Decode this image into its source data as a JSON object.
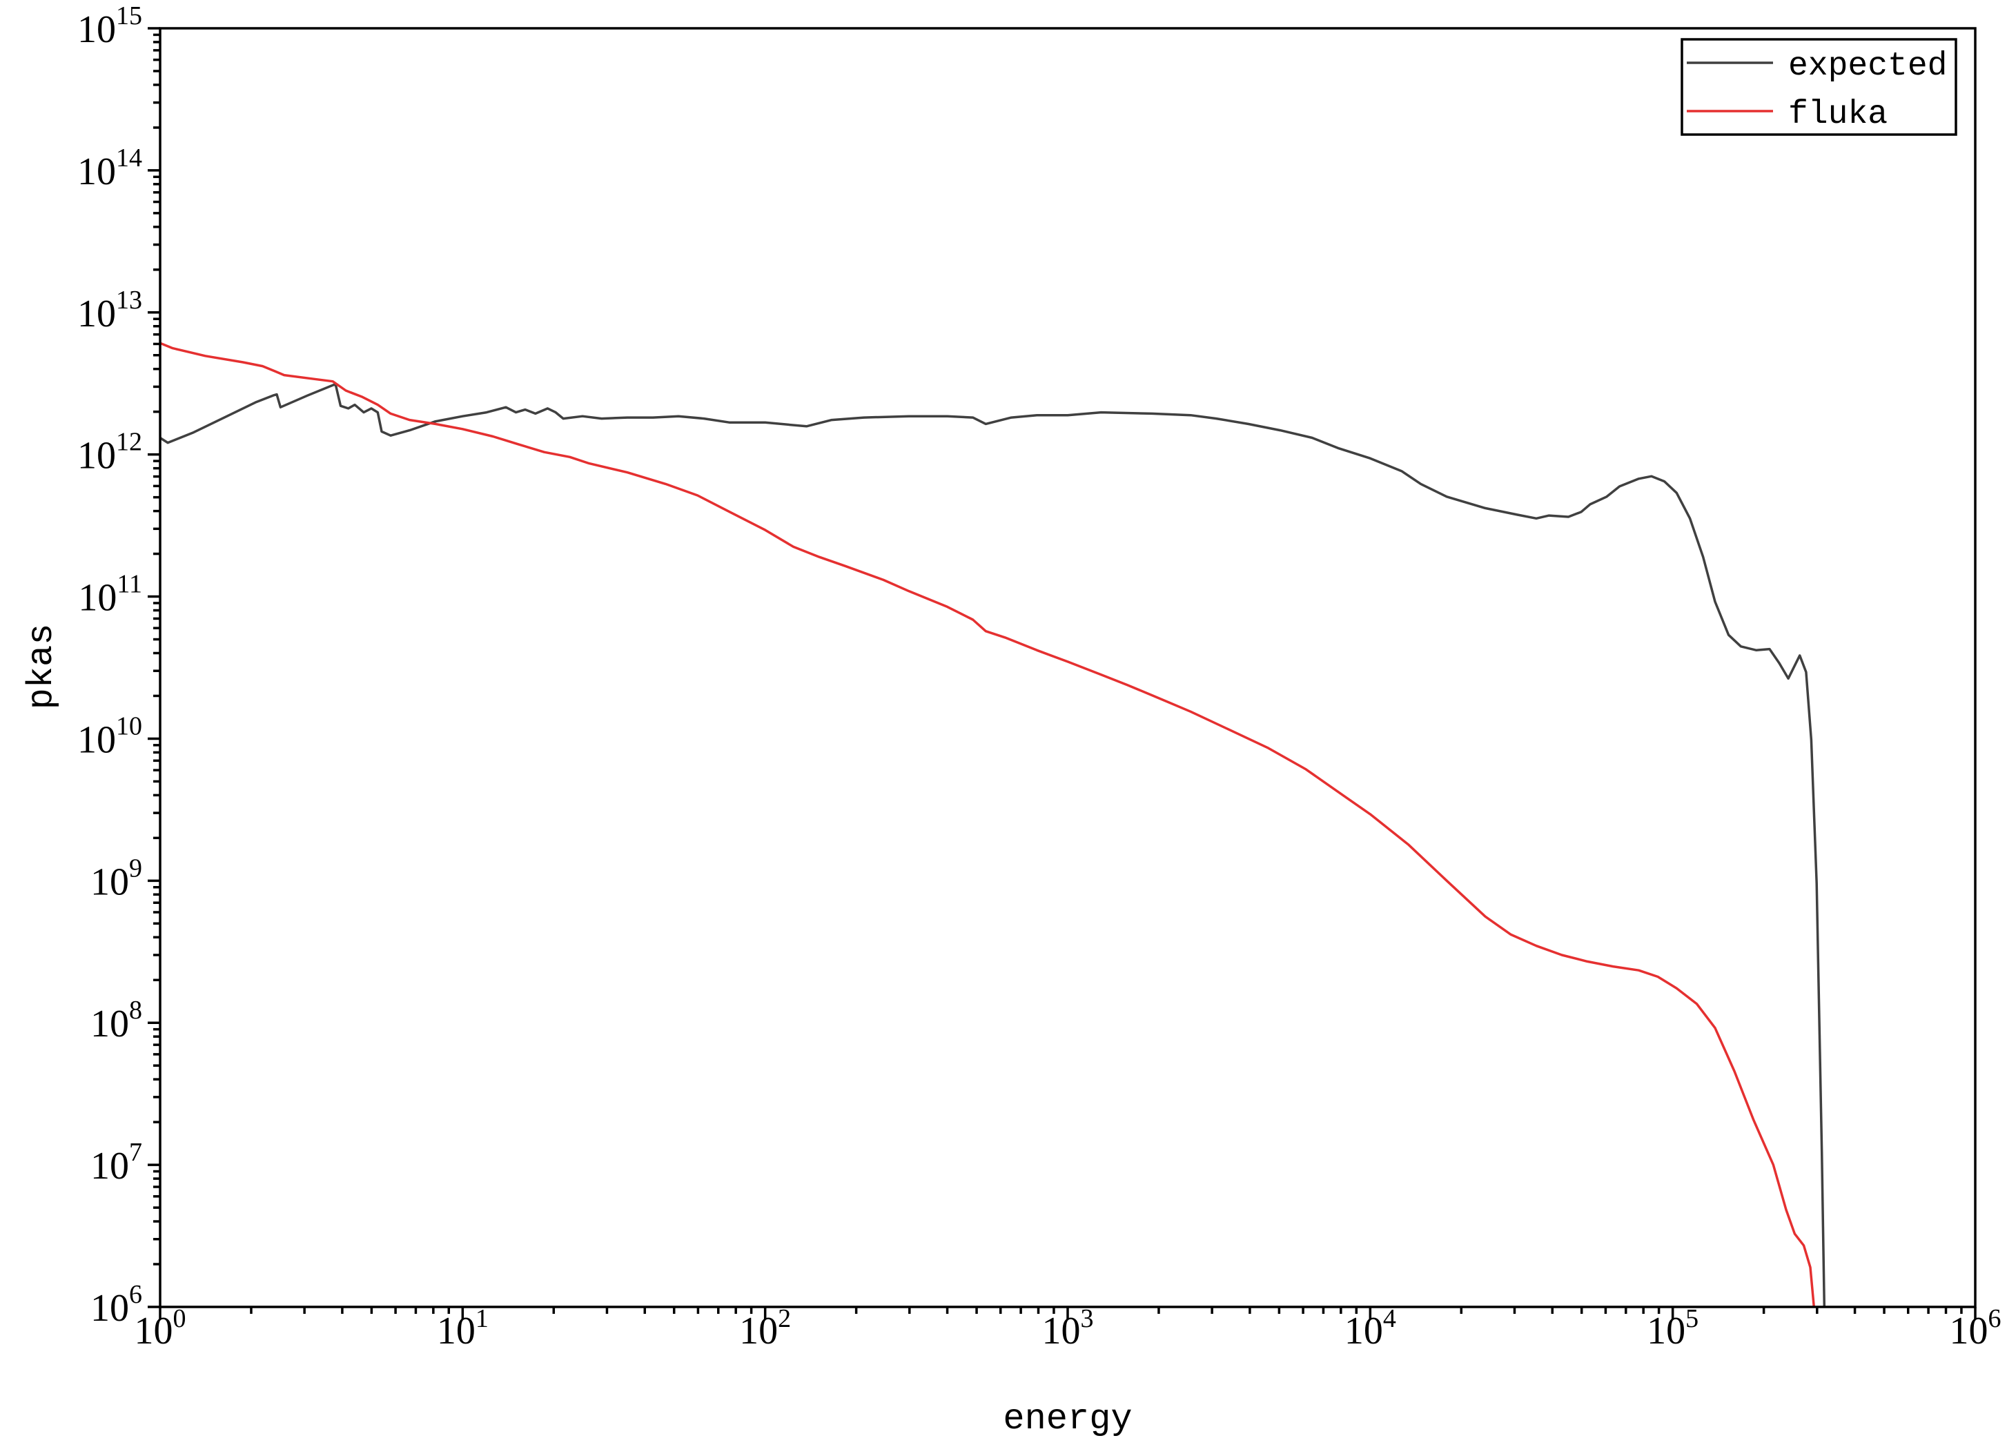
{
  "chart_data": {
    "type": "line",
    "xlabel": "energy",
    "ylabel": "pkas",
    "xscale": "log",
    "yscale": "log",
    "xlim": [
      1,
      1000000
    ],
    "ylim": [
      1000000,
      1000000000000000.0
    ],
    "grid": false,
    "legend_position": "top-right",
    "x_ticks": [
      1,
      10,
      100,
      1000,
      10000,
      100000,
      1000000
    ],
    "x_tick_labels": [
      {
        "base": "10",
        "exp": "0"
      },
      {
        "base": "10",
        "exp": "1"
      },
      {
        "base": "10",
        "exp": "2"
      },
      {
        "base": "10",
        "exp": "3"
      },
      {
        "base": "10",
        "exp": "4"
      },
      {
        "base": "10",
        "exp": "5"
      },
      {
        "base": "10",
        "exp": "6"
      }
    ],
    "y_ticks": [
      1000000.0,
      10000000.0,
      100000000.0,
      1000000000.0,
      10000000000.0,
      100000000000.0,
      1000000000000.0,
      10000000000000.0,
      100000000000000.0,
      1000000000000000.0
    ],
    "y_tick_labels": [
      {
        "base": "10",
        "exp": "6"
      },
      {
        "base": "10",
        "exp": "7"
      },
      {
        "base": "10",
        "exp": "8"
      },
      {
        "base": "10",
        "exp": "9"
      },
      {
        "base": "10",
        "exp": "10"
      },
      {
        "base": "10",
        "exp": "11"
      },
      {
        "base": "10",
        "exp": "12"
      },
      {
        "base": "10",
        "exp": "13"
      },
      {
        "base": "10",
        "exp": "14"
      },
      {
        "base": "10",
        "exp": "15"
      }
    ],
    "series": [
      {
        "name": "expected",
        "color": "#404040",
        "x": [
          1,
          1.06,
          1.28,
          1.63,
          2.08,
          2.36,
          2.43,
          2.5,
          3.07,
          3.8,
          3.95,
          4.19,
          4.4,
          4.71,
          4.99,
          5.24,
          5.4,
          5.78,
          6.68,
          8.13,
          10,
          12,
          13.9,
          15,
          16.1,
          17.4,
          19.1,
          20.3,
          21.5,
          24.9,
          28.8,
          35,
          42.6,
          51.7,
          62.8,
          76.4,
          100,
          137,
          166,
          212,
          299,
          400,
          486,
          536,
          651,
          791,
          1000,
          1290,
          1900,
          2550,
          3100,
          3950,
          5040,
          6430,
          7820,
          10000,
          12700,
          14700,
          17900,
          24000,
          30600,
          35400,
          39000,
          45200,
          49800,
          53300,
          60500,
          66700,
          77200,
          85100,
          93800,
          103000,
          114000,
          126000,
          138000,
          153000,
          168000,
          189000,
          209000,
          225000,
          241000,
          263000,
          276000,
          287000,
          299000,
          311000,
          317000
        ],
        "y": [
          1310000000000.0,
          1210000000000.0,
          1420000000000.0,
          1820000000000.0,
          2340000000000.0,
          2600000000000.0,
          2650000000000.0,
          2150000000000.0,
          2600000000000.0,
          3130000000000.0,
          2200000000000.0,
          2110000000000.0,
          2240000000000.0,
          1980000000000.0,
          2110000000000.0,
          1980000000000.0,
          1450000000000.0,
          1360000000000.0,
          1480000000000.0,
          1710000000000.0,
          1860000000000.0,
          1980000000000.0,
          2150000000000.0,
          1980000000000.0,
          2070000000000.0,
          1940000000000.0,
          2110000000000.0,
          1980000000000.0,
          1790000000000.0,
          1860000000000.0,
          1790000000000.0,
          1820000000000.0,
          1820000000000.0,
          1860000000000.0,
          1790000000000.0,
          1680000000000.0,
          1680000000000.0,
          1580000000000.0,
          1750000000000.0,
          1820000000000.0,
          1860000000000.0,
          1860000000000.0,
          1820000000000.0,
          1640000000000.0,
          1820000000000.0,
          1890000000000.0,
          1890000000000.0,
          1980000000000.0,
          1940000000000.0,
          1890000000000.0,
          1790000000000.0,
          1640000000000.0,
          1480000000000.0,
          1310000000000.0,
          1110000000000.0,
          940000000000.0,
          764000000000.0,
          620000000000.0,
          505000000000.0,
          419000000000.0,
          377000000000.0,
          355000000000.0,
          372000000000.0,
          364000000000.0,
          394000000000.0,
          446000000000.0,
          505000000000.0,
          596000000000.0,
          675000000000.0,
          703000000000.0,
          647000000000.0,
          537000000000.0,
          355000000000.0,
          190000000000.0,
          92000000000.0,
          53700000000.0,
          44600000000.0,
          41900000000.0,
          42700000000.0,
          34000000000.0,
          26500000000.0,
          38500000000.0,
          29400000000.0,
          9800000000.0,
          960000000.0,
          12300000.0,
          1000000.0
        ]
      },
      {
        "name": "fluka",
        "color": "#e53030",
        "x": [
          1,
          1.1,
          1.41,
          1.88,
          2.18,
          2.4,
          2.57,
          3.22,
          3.72,
          4.11,
          4.66,
          5.24,
          5.78,
          6.68,
          8.13,
          10,
          12.6,
          15.3,
          18.6,
          22.6,
          26.2,
          35,
          46.9,
          59.8,
          76.4,
          100,
          124,
          151,
          184,
          246,
          299,
          400,
          486,
          536,
          621,
          791,
          1000,
          1290,
          1570,
          1900,
          2550,
          3410,
          4570,
          6130,
          8200,
          10000,
          13400,
          17900,
          24000,
          29100,
          35400,
          43000,
          52200,
          63500,
          77200,
          89300,
          103000,
          120000,
          138000,
          160000,
          185000,
          215000,
          237000,
          253000,
          271000,
          285000,
          293000
        ],
        "y": [
          6080000000000.0,
          5600000000000.0,
          4940000000000.0,
          4460000000000.0,
          4190000000000.0,
          3850000000000.0,
          3620000000000.0,
          3400000000000.0,
          3270000000000.0,
          2820000000000.0,
          2540000000000.0,
          2240000000000.0,
          1940000000000.0,
          1750000000000.0,
          1640000000000.0,
          1510000000000.0,
          1340000000000.0,
          1180000000000.0,
          1040000000000.0,
          960000000000.0,
          865000000000.0,
          748000000000.0,
          620000000000.0,
          515000000000.0,
          394000000000.0,
          294000000000.0,
          224000000000.0,
          190000000000.0,
          164000000000.0,
          131000000000.0,
          109000000000.0,
          84700000000.0,
          68800000000.0,
          57100000000.0,
          51500000000.0,
          41900000000.0,
          34800000000.0,
          28200000000.0,
          23900000000.0,
          20200000000.0,
          15500000000.0,
          11600000000.0,
          8650000000.0,
          6080000000.0,
          3940000000.0,
          2940000000.0,
          1790000000.0,
          1000000000.0,
          560000000.0,
          419000000.0,
          348000000.0,
          300000000.0,
          270000000.0,
          249000000.0,
          234000000.0,
          211000000.0,
          175000000.0,
          136000000.0,
          92000000.0,
          45500000.0,
          20700000.0,
          10000000.0,
          4840000.0,
          3270000.0,
          2710000.0,
          1900000.0,
          1000000.0
        ]
      }
    ]
  }
}
